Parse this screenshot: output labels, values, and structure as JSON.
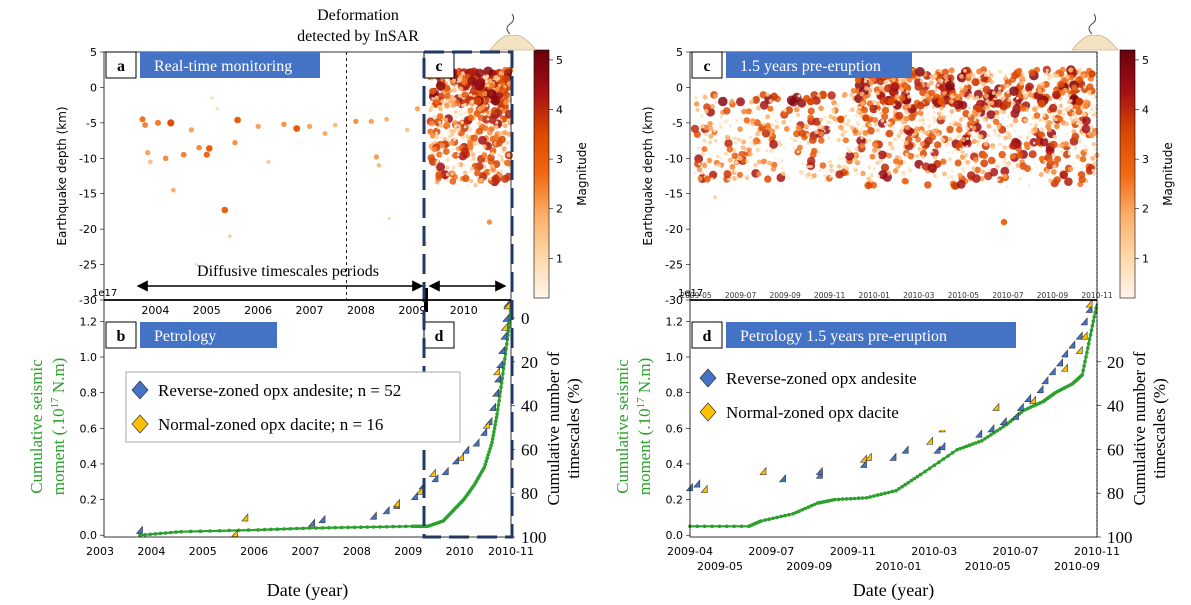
{
  "colors": {
    "cmap": [
      "#fff5eb",
      "#fdd8a8",
      "#fdae6b",
      "#f16913",
      "#d94801",
      "#a50f15",
      "#67000d"
    ],
    "panel_box": "#4472c4",
    "andesite": "#4472c4",
    "dacite": "#ffc000",
    "moment_line": "#2ca02c",
    "dashed_box": "#1f3864"
  },
  "annotations": {
    "deformation_line1": "Deformation",
    "deformation_line2": "detected by InSAR",
    "diffusive": "Diffusive timescales periods"
  },
  "panels": {
    "a": {
      "letter": "a",
      "title": "Real-time monitoring"
    },
    "b": {
      "letter": "b",
      "title": "Petrology"
    },
    "c": {
      "letter": "c"
    },
    "d": {
      "letter": "d"
    },
    "c2": {
      "letter": "c",
      "title": "1.5 years pre-eruption"
    },
    "d2": {
      "letter": "d",
      "title": "Petrology 1.5 years pre-eruption"
    }
  },
  "legend_left": [
    {
      "label": "Reverse-zoned opx andesite; n = 52",
      "color": "andesite"
    },
    {
      "label": "Normal-zoned opx dacite; n = 16",
      "color": "dacite"
    }
  ],
  "legend_right": [
    {
      "label": "Reverse-zoned opx andesite",
      "color": "andesite"
    },
    {
      "label": "Normal-zoned opx dacite",
      "color": "dacite"
    }
  ],
  "axis_text": {
    "depth_label": "Earthquake depth (km)",
    "magnitude_label": "Magnitude",
    "moment_label_1": "Cumulative seismic",
    "moment_label_2": "moment (.10",
    "moment_sup": "17",
    "moment_label_2b": " N.m)",
    "timescales_label_1": "Cumulative number of",
    "timescales_label_2": "timescales (%)",
    "date_label": "Date (year)",
    "offset": "1e17"
  },
  "chart_data": [
    {
      "name": "a",
      "type": "scatter",
      "xlabel": "",
      "ylabel": "Earthquake depth (km)",
      "xlim": [
        2003.0,
        2010.92
      ],
      "ylim": [
        -30,
        5
      ],
      "yticks": [
        5,
        0,
        -5,
        -10,
        -15,
        -20,
        -25,
        -30
      ],
      "xticks": [
        "2004",
        "2005",
        "2006",
        "2007",
        "2008",
        "2009",
        "2010"
      ],
      "colorbar": {
        "label": "Magnitude",
        "range": [
          0.2,
          5.2
        ],
        "ticks": [
          1,
          2,
          3,
          4,
          5
        ]
      },
      "points": [
        [
          2003.75,
          -4.5,
          2.6
        ],
        [
          2003.8,
          -5.3,
          2.4
        ],
        [
          2003.85,
          -9.2,
          2.0
        ],
        [
          2003.9,
          -10.5,
          1.6
        ],
        [
          2004.05,
          -5.0,
          2.5
        ],
        [
          2004.2,
          -10,
          2.3
        ],
        [
          2004.3,
          -5.0,
          3.3
        ],
        [
          2004.35,
          -14.5,
          1.8
        ],
        [
          2004.55,
          -9.5,
          2.4
        ],
        [
          2004.7,
          -6,
          2.0
        ],
        [
          2004.8,
          -25,
          0.8
        ],
        [
          2004.85,
          -8.5,
          2.3
        ],
        [
          2005.0,
          -9.5,
          2.7
        ],
        [
          2005.05,
          -8.6,
          3.0
        ],
        [
          2005.1,
          -1.5,
          0.9
        ],
        [
          2005.2,
          -3,
          0.8
        ],
        [
          2005.35,
          -17.3,
          2.9
        ],
        [
          2005.45,
          -21,
          1.2
        ],
        [
          2005.55,
          -7.8,
          2.2
        ],
        [
          2005.6,
          -4.6,
          3.0
        ],
        [
          2006.0,
          -5.5,
          2.0
        ],
        [
          2006.2,
          -10.5,
          1.4
        ],
        [
          2006.5,
          -5.2,
          2.2
        ],
        [
          2006.75,
          -5.8,
          3.1
        ],
        [
          2007.0,
          -5.5,
          2.0
        ],
        [
          2007.3,
          -6.5,
          1.9
        ],
        [
          2007.5,
          -5.3,
          1.6
        ],
        [
          2007.9,
          -4.8,
          2.2
        ],
        [
          2008.2,
          -4.8,
          2.0
        ],
        [
          2008.3,
          -9.8,
          2.1
        ],
        [
          2008.35,
          -11,
          1.6
        ],
        [
          2008.5,
          -4.5,
          1.8
        ],
        [
          2008.55,
          -18.5,
          1.0
        ],
        [
          2008.9,
          -6.0,
          1.5
        ],
        [
          2009.1,
          -3.0,
          2.0
        ],
        [
          2009.25,
          -22,
          1.0
        ],
        [
          2010.5,
          -19,
          2.2
        ]
      ],
      "dense_cluster": {
        "x_range": [
          2009.35,
          2010.92
        ],
        "depth_range": [
          -14,
          2.5
        ],
        "mag_range": [
          0.5,
          4.6
        ]
      }
    },
    {
      "name": "b",
      "type": "scatter",
      "xlabel": "Date (year)",
      "ylabel": "Cumulative seismic moment (.10^17 N.m)",
      "y2label": "Cumulative number of timescales (%)",
      "xlim": [
        2003.0,
        2010.92
      ],
      "ylim": [
        -0.01,
        1.32
      ],
      "yticks": [
        0.0,
        0.2,
        0.4,
        0.6,
        0.8,
        1.0,
        1.2
      ],
      "xticks": [
        "2003",
        "2004",
        "2005",
        "2006",
        "2007",
        "2008",
        "2009",
        "2010",
        "2010-11"
      ],
      "y2ticks": [
        0,
        20,
        40,
        60,
        80,
        100
      ],
      "series": [
        {
          "name": "Reverse-zoned opx andesite; n = 52",
          "marker": "diamond",
          "points": [
            [
              2003.75,
              0.01
            ],
            [
              2007.1,
              0.05
            ],
            [
              2007.3,
              0.07
            ],
            [
              2008.3,
              0.09
            ],
            [
              2008.55,
              0.12
            ],
            [
              2008.75,
              0.15
            ],
            [
              2009.1,
              0.2
            ],
            [
              2009.25,
              0.26
            ],
            [
              2009.5,
              0.3
            ],
            [
              2009.7,
              0.34
            ],
            [
              2009.9,
              0.4
            ],
            [
              2010.1,
              0.46
            ],
            [
              2010.3,
              0.5
            ],
            [
              2010.45,
              0.56
            ],
            [
              2010.55,
              0.62
            ],
            [
              2010.62,
              0.7
            ],
            [
              2010.68,
              0.78
            ],
            [
              2010.72,
              0.86
            ],
            [
              2010.76,
              0.94
            ],
            [
              2010.8,
              1.02
            ],
            [
              2010.84,
              1.1
            ],
            [
              2010.88,
              1.2
            ],
            [
              2010.9,
              1.28
            ]
          ]
        },
        {
          "name": "Normal-zoned opx dacite; n = 16",
          "marker": "diamond",
          "points": [
            [
              2005.6,
              -0.01
            ],
            [
              2005.8,
              0.08
            ],
            [
              2008.75,
              0.16
            ],
            [
              2009.2,
              0.23
            ],
            [
              2009.45,
              0.33
            ],
            [
              2010.0,
              0.42
            ],
            [
              2010.5,
              0.6
            ],
            [
              2010.7,
              0.9
            ],
            [
              2010.85,
              1.15
            ],
            [
              2010.9,
              1.27
            ]
          ]
        },
        {
          "name": "Cumulative seismic moment",
          "points": [
            [
              2003.7,
              0.0
            ],
            [
              2004.5,
              0.02
            ],
            [
              2006,
              0.03
            ],
            [
              2007,
              0.04
            ],
            [
              2008,
              0.045
            ],
            [
              2009,
              0.05
            ],
            [
              2009.3,
              0.05
            ],
            [
              2009.6,
              0.08
            ],
            [
              2009.8,
              0.14
            ],
            [
              2010.0,
              0.2
            ],
            [
              2010.2,
              0.28
            ],
            [
              2010.4,
              0.38
            ],
            [
              2010.55,
              0.52
            ],
            [
              2010.65,
              0.68
            ],
            [
              2010.75,
              0.88
            ],
            [
              2010.85,
              1.1
            ],
            [
              2010.92,
              1.28
            ]
          ]
        }
      ]
    },
    {
      "name": "c",
      "type": "scatter",
      "xlabel": "",
      "ylabel": "Earthquake depth (km)",
      "xlim": [
        2009.3,
        2010.92
      ],
      "ylim": [
        -30,
        5
      ],
      "yticks": [
        5,
        0,
        -5,
        -10,
        -15,
        -20,
        -25,
        -30
      ],
      "xticks": [
        "2009-05",
        "2009-07",
        "2009-09",
        "2009-11",
        "2010-01",
        "2010-03",
        "2010-05",
        "2010-07",
        "2010-09",
        "2010-11"
      ],
      "colorbar": {
        "label": "Magnitude",
        "range": [
          0.2,
          5.2
        ],
        "ticks": [
          1,
          2,
          3,
          4,
          5
        ]
      },
      "points": [
        [
          2009.35,
          -5.5,
          1.5
        ],
        [
          2009.4,
          -15.5,
          1.2
        ],
        [
          2009.5,
          -10,
          1.8
        ],
        [
          2009.55,
          -4.7,
          2.0
        ],
        [
          2009.62,
          -3.0,
          2.5
        ],
        [
          2009.78,
          -2.0,
          3.5
        ],
        [
          2009.9,
          -4.5,
          3.4
        ],
        [
          2010.0,
          -4.3,
          3.5
        ],
        [
          2010.1,
          -2.0,
          3.5
        ],
        [
          2010.3,
          -2.0,
          3.3
        ],
        [
          2010.45,
          -3.0,
          3.6
        ],
        [
          2010.55,
          -19,
          2.8
        ],
        [
          2010.7,
          -2.3,
          3.5
        ],
        [
          2010.85,
          -2.0,
          3.7
        ],
        [
          2010.9,
          1.9,
          3.5
        ]
      ],
      "dense_cluster": {
        "x_range": [
          2009.35,
          2010.92
        ],
        "depth_range": [
          -14,
          2.5
        ],
        "mag_range": [
          0.5,
          4.6
        ]
      }
    },
    {
      "name": "d",
      "type": "scatter",
      "xlabel": "Date (year)",
      "ylabel": "Cumulative seismic moment (.10^17 N.m)",
      "y2label": "Cumulative number of timescales (%)",
      "xlim": [
        2009.26,
        2010.92
      ],
      "ylim": [
        -0.01,
        1.32
      ],
      "yticks": [
        0.0,
        0.2,
        0.4,
        0.6,
        0.8,
        1.0,
        1.2
      ],
      "xticks_top": [
        "2009-04",
        "2009-07",
        "2009-11",
        "2010-03",
        "2010-07",
        "2010-11"
      ],
      "xticks_bottom": [
        "2009-05",
        "2009-09",
        "2010-01",
        "2010-05",
        "2010-09"
      ],
      "y2ticks": [
        20,
        40,
        60,
        80,
        100
      ],
      "series": [
        {
          "name": "Reverse-zoned opx andesite",
          "marker": "diamond",
          "points": [
            [
              2009.27,
              0.25
            ],
            [
              2009.3,
              0.27
            ],
            [
              2009.65,
              0.3
            ],
            [
              2009.8,
              0.32
            ],
            [
              2009.8,
              0.34
            ],
            [
              2009.98,
              0.38
            ],
            [
              2010.1,
              0.42
            ],
            [
              2010.15,
              0.46
            ],
            [
              2010.28,
              0.46
            ],
            [
              2010.3,
              0.48
            ],
            [
              2010.45,
              0.55
            ],
            [
              2010.5,
              0.58
            ],
            [
              2010.55,
              0.62
            ],
            [
              2010.6,
              0.65
            ],
            [
              2010.62,
              0.7
            ],
            [
              2010.65,
              0.75
            ],
            [
              2010.7,
              0.8
            ],
            [
              2010.72,
              0.85
            ],
            [
              2010.75,
              0.9
            ],
            [
              2010.78,
              0.95
            ],
            [
              2010.8,
              1.0
            ],
            [
              2010.83,
              1.05
            ],
            [
              2010.86,
              1.1
            ],
            [
              2010.88,
              1.18
            ],
            [
              2010.9,
              1.25
            ]
          ]
        },
        {
          "name": "Normal-zoned opx dacite",
          "marker": "diamond",
          "points": [
            [
              2009.33,
              0.24
            ],
            [
              2009.57,
              0.34
            ],
            [
              2009.98,
              0.41
            ],
            [
              2010.0,
              0.42
            ],
            [
              2010.25,
              0.51
            ],
            [
              2010.3,
              0.58
            ],
            [
              2010.52,
              0.7
            ],
            [
              2010.67,
              0.74
            ],
            [
              2010.8,
              0.92
            ],
            [
              2010.86,
              1.02
            ],
            [
              2010.88,
              1.1
            ],
            [
              2010.9,
              1.28
            ]
          ]
        },
        {
          "name": "Cumulative seismic moment",
          "points": [
            [
              2009.26,
              0.05
            ],
            [
              2009.5,
              0.05
            ],
            [
              2009.55,
              0.08
            ],
            [
              2009.68,
              0.12
            ],
            [
              2009.78,
              0.18
            ],
            [
              2009.85,
              0.2
            ],
            [
              2009.98,
              0.21
            ],
            [
              2010.1,
              0.25
            ],
            [
              2010.2,
              0.34
            ],
            [
              2010.35,
              0.48
            ],
            [
              2010.45,
              0.53
            ],
            [
              2010.55,
              0.62
            ],
            [
              2010.62,
              0.7
            ],
            [
              2010.7,
              0.75
            ],
            [
              2010.75,
              0.8
            ],
            [
              2010.82,
              0.85
            ],
            [
              2010.86,
              0.9
            ],
            [
              2010.89,
              1.1
            ],
            [
              2010.92,
              1.3
            ]
          ]
        }
      ]
    }
  ]
}
